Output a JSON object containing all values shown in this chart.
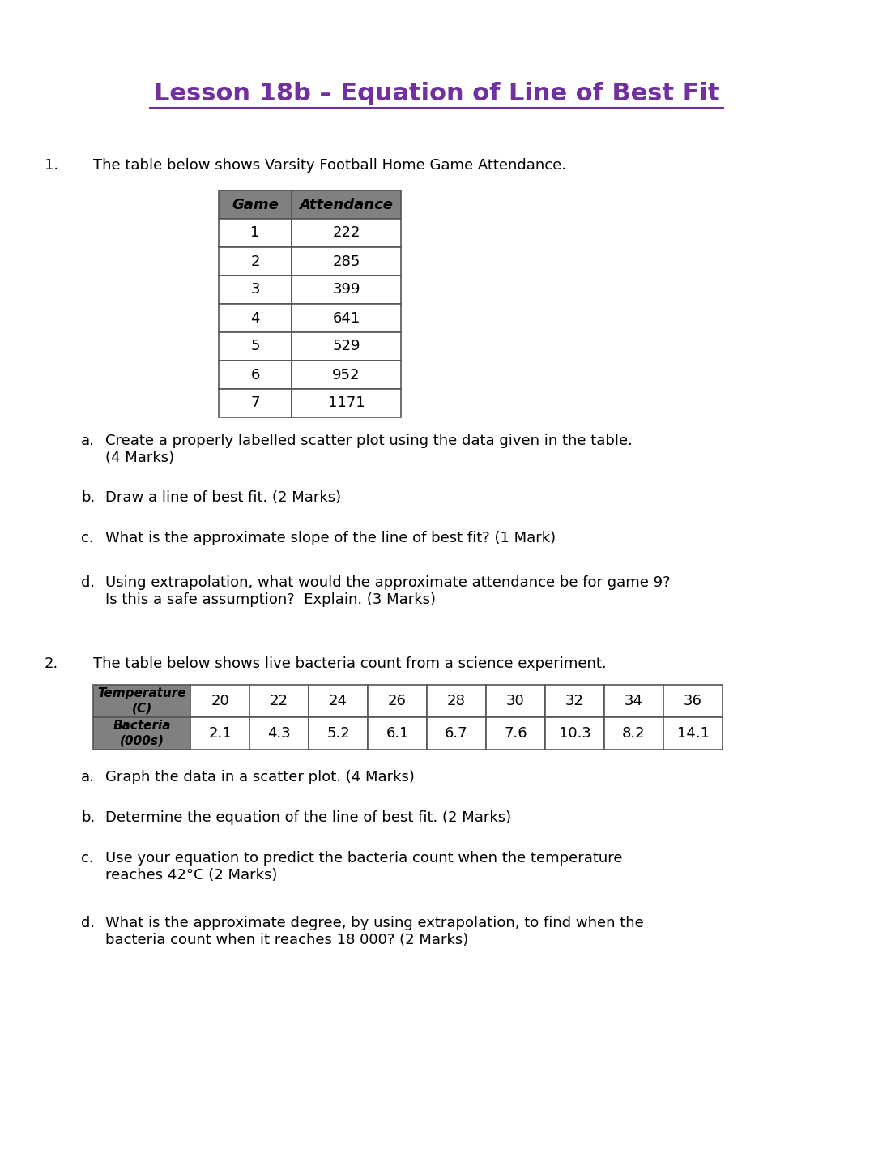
{
  "title": "Lesson 18b – Equation of Line of Best Fit",
  "title_color": "#7030A0",
  "bg_color": "#ffffff",
  "title_fontsize": 22,
  "q1_intro": "The table below shows Varsity Football Home Game Attendance.",
  "q1_table_headers": [
    "Game",
    "Attendance"
  ],
  "q1_table_data": [
    [
      1,
      222
    ],
    [
      2,
      285
    ],
    [
      3,
      399
    ],
    [
      4,
      641
    ],
    [
      5,
      529
    ],
    [
      6,
      952
    ],
    [
      7,
      1171
    ]
  ],
  "q1a": "Create a properly labelled scatter plot using the data given in the table.\n(4 Marks)",
  "q1b": "Draw a line of best fit. (2 Marks)",
  "q1c": "What is the approximate slope of the line of best fit? (1 Mark)",
  "q1d": "Using extrapolation, what would the approximate attendance be for game 9?\nIs this a safe assumption?  Explain. (3 Marks)",
  "q2_intro": "The table below shows live bacteria count from a science experiment.",
  "q2_table_temps": [
    20,
    22,
    24,
    26,
    28,
    30,
    32,
    34,
    36
  ],
  "q2_table_bacteria": [
    2.1,
    4.3,
    5.2,
    6.1,
    6.7,
    7.6,
    10.3,
    8.2,
    14.1
  ],
  "q2a": "Graph the data in a scatter plot. (4 Marks)",
  "q2b": "Determine the equation of the line of best fit. (2 Marks)",
  "q2c": "Use your equation to predict the bacteria count when the temperature\nreaches 42°C (2 Marks)",
  "q2d": "What is the approximate degree, by using extrapolation, to find when the\nbacteria count when it reaches 18 000? (2 Marks)",
  "body_fontsize": 13,
  "number_fontsize": 13,
  "header_bg": "#808080",
  "cell_bg": "#ffffff",
  "cell_border": "#555555"
}
